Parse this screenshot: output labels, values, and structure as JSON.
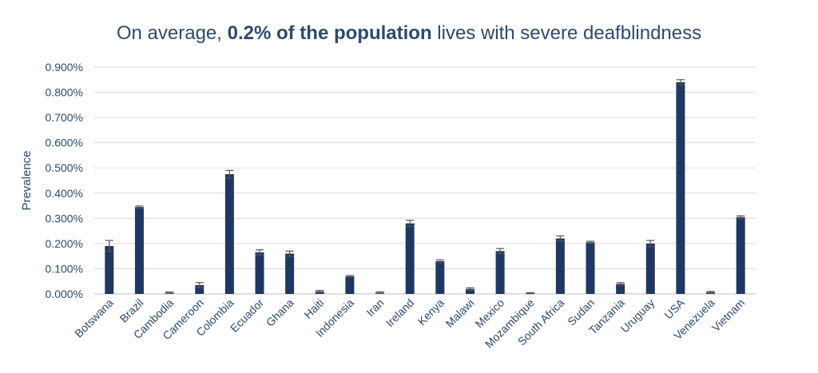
{
  "chart_data": {
    "type": "bar",
    "title_pre": "On average, ",
    "title_bold": "0.2% of the population",
    "title_post": " lives with severe deafblindness",
    "ylabel": "Prevalence",
    "xlabel": "",
    "ylim": [
      0,
      0.9
    ],
    "y_ticks": [
      "0.000%",
      "0.100%",
      "0.200%",
      "0.300%",
      "0.400%",
      "0.500%",
      "0.600%",
      "0.700%",
      "0.800%",
      "0.900%"
    ],
    "grid": true,
    "bar_color": "#1f3763",
    "categories": [
      "Botswana",
      "Brazil",
      "Cambodia",
      "Cameroon",
      "Colombia",
      "Ecuador",
      "Ghana",
      "Haiti",
      "Indonesia",
      "Iran",
      "Ireland",
      "Kenya",
      "Malawi",
      "Mexico",
      "Mozambique",
      "South Africa",
      "Sudan",
      "Tanzania",
      "Uruguay",
      "USA",
      "Venezuela",
      "Vietnam"
    ],
    "values": [
      0.19,
      0.345,
      0.005,
      0.035,
      0.475,
      0.165,
      0.16,
      0.01,
      0.07,
      0.005,
      0.28,
      0.13,
      0.02,
      0.17,
      0.003,
      0.22,
      0.205,
      0.04,
      0.2,
      0.84,
      0.007,
      0.305
    ],
    "errors": [
      0.022,
      0.004,
      0.003,
      0.01,
      0.015,
      0.01,
      0.01,
      0.004,
      0.003,
      0.003,
      0.012,
      0.005,
      0.004,
      0.01,
      0.002,
      0.01,
      0.004,
      0.005,
      0.012,
      0.01,
      0.003,
      0.005
    ]
  }
}
